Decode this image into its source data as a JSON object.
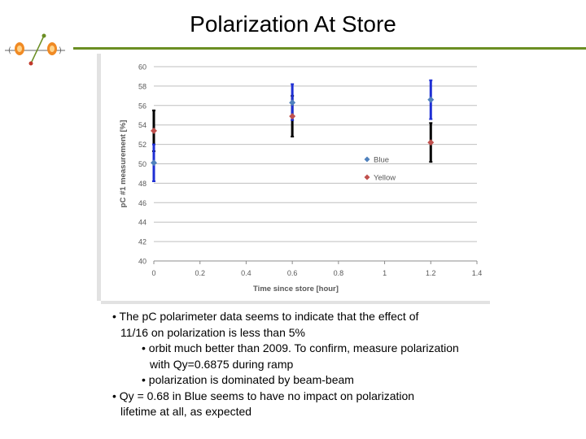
{
  "slide": {
    "title": "Polarization At Store",
    "bullets": [
      {
        "level": 1,
        "lines": [
          "• The pC polarimeter data seems to indicate that the effect of",
          "11/16 on polarization is less than 5%"
        ]
      },
      {
        "level": 2,
        "lines": [
          "• orbit much better than 2009. To confirm, measure polarization",
          "with Qy=0.6875 during ramp"
        ]
      },
      {
        "level": 2,
        "lines": [
          "• polarization is dominated by beam-beam"
        ]
      },
      {
        "level": 1,
        "lines": [
          "• Qy = 0.68 in Blue seems to have no impact on polarization",
          "lifetime at all, as expected"
        ]
      }
    ]
  },
  "colors": {
    "accent_rule": "#6b8e23",
    "blue_marker": "#4f81bd",
    "blue_errorbar": "#1f2fd4",
    "yellow_marker": "#c0504d",
    "yellow_errorbar": "#000000",
    "gridline": "#bfbfbf"
  },
  "logo": {
    "icon": "accelerator-logo-icon"
  },
  "chart_data": {
    "type": "scatter",
    "xlabel": "Time since store [hour]",
    "ylabel": "pC #1 measurement [%]",
    "xlim": [
      0,
      1.4
    ],
    "ylim": [
      40,
      60
    ],
    "xticks": [
      "0",
      "0.2",
      "0.4",
      "0.6",
      "0.8",
      "1",
      "1.2",
      "1.4"
    ],
    "yticks": [
      "40",
      "42",
      "44",
      "46",
      "48",
      "50",
      "52",
      "54",
      "56",
      "58",
      "60"
    ],
    "grid": true,
    "legend_position": "right",
    "series": [
      {
        "name": "Blue",
        "marker": "diamond",
        "points": [
          {
            "x": 0,
            "y": 50.1,
            "err_low": 48.2,
            "err_high": 52.0
          },
          {
            "x": 0.6,
            "y": 56.3,
            "err_low": 54.5,
            "err_high": 58.2
          },
          {
            "x": 1.2,
            "y": 56.6,
            "err_low": 54.6,
            "err_high": 58.6
          }
        ]
      },
      {
        "name": "Yellow",
        "marker": "diamond",
        "points": [
          {
            "x": 0,
            "y": 53.4,
            "err_low": 51.3,
            "err_high": 55.5
          },
          {
            "x": 0.6,
            "y": 54.9,
            "err_low": 52.8,
            "err_high": 57.0
          },
          {
            "x": 1.2,
            "y": 52.2,
            "err_low": 50.2,
            "err_high": 54.2
          }
        ]
      }
    ]
  }
}
